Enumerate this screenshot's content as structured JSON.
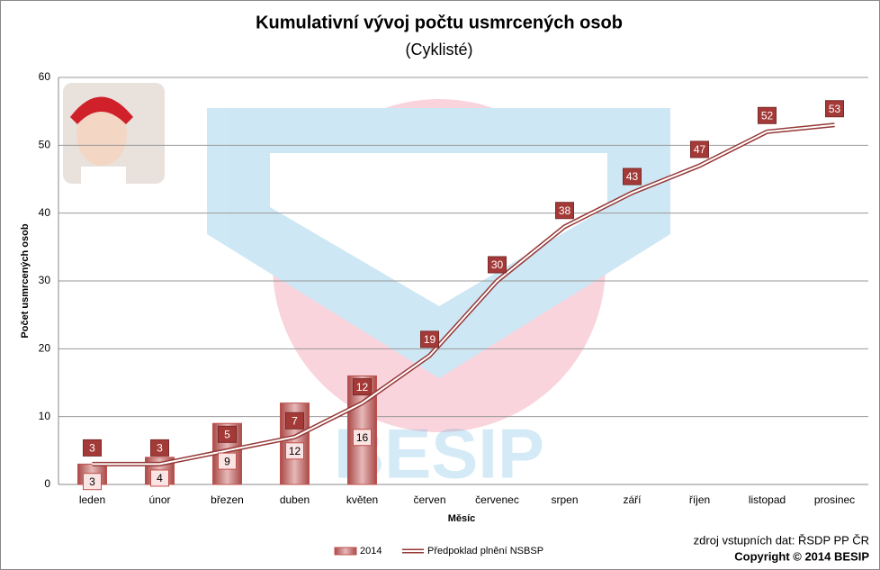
{
  "chart_data": {
    "type": "bar",
    "title": "Kumulativní vývoj počtu usmrcených osob",
    "subtitle": "(Cyklisté)",
    "y_label": "Počet usmrcených osob",
    "x_label": "Měsíc",
    "watermark": "BESIP",
    "source": "zdroj vstupních dat: ŘSDP PP ČR",
    "copyright": "Copyright © 2014 BESIP",
    "categories": [
      "leden",
      "únor",
      "březen",
      "duben",
      "květen",
      "červen",
      "červenec",
      "srpen",
      "září",
      "říjen",
      "listopad",
      "prosinec"
    ],
    "series": [
      {
        "name": "2014",
        "type": "bar",
        "color": "#c0504d",
        "values": [
          3,
          4,
          9,
          12,
          16,
          null,
          null,
          null,
          null,
          null,
          null,
          null
        ]
      },
      {
        "name": "Předpoklad plnění NSBSP",
        "type": "line",
        "color": "#953735",
        "values": [
          3,
          3,
          5,
          7,
          12,
          19,
          30,
          38,
          43,
          47,
          52,
          53
        ]
      }
    ],
    "ylim": [
      0,
      60
    ],
    "yticks": [
      0,
      10,
      20,
      30,
      40,
      50,
      60
    ],
    "grid": true,
    "legend": "bottom"
  }
}
